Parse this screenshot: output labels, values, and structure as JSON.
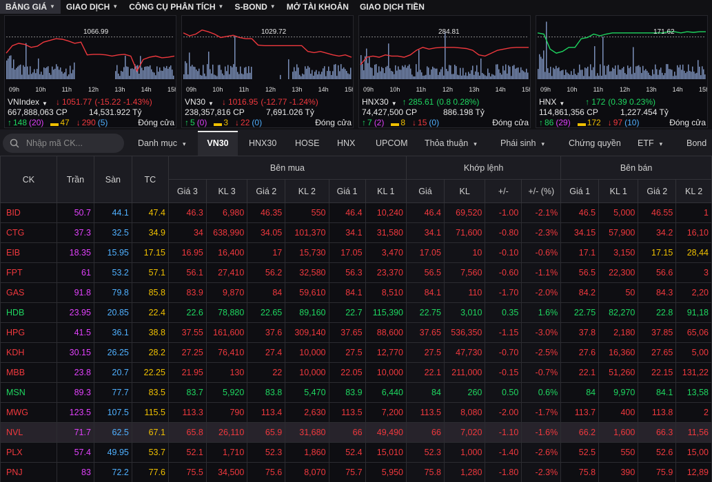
{
  "nav": {
    "items": [
      {
        "label": "BẢNG GIÁ",
        "dropdown": true,
        "active": true
      },
      {
        "label": "GIAO DỊCH",
        "dropdown": true,
        "active": false
      },
      {
        "label": "CÔNG CỤ PHÂN TÍCH",
        "dropdown": true,
        "active": false
      },
      {
        "label": "S-BOND",
        "dropdown": true,
        "active": false
      },
      {
        "label": "MỞ TÀI KHOẢN",
        "dropdown": false,
        "active": false
      },
      {
        "label": "GIAO DỊCH TIỀN",
        "dropdown": false,
        "active": false
      }
    ]
  },
  "indices": [
    {
      "name": "VNIndex",
      "has_dropdown": true,
      "ref": "1066.99",
      "arrow": "down",
      "value": "1051.77",
      "change": "(-15.22  -1.43%)",
      "volume": "667,888,063 CP",
      "value_traded": "14,531.922 Tỷ",
      "up": "148",
      "ceil": "(20)",
      "ref_count": "47",
      "down": "290",
      "floor": "(5)",
      "status": "Đóng cửa",
      "color": "red",
      "times": [
        "09h",
        "10h",
        "11h",
        "12h",
        "13h",
        "14h",
        "15h"
      ]
    },
    {
      "name": "VN30",
      "has_dropdown": true,
      "ref": "1029.72",
      "arrow": "down",
      "value": "1016.95",
      "change": "(-12.77  -1.24%)",
      "volume": "238,357,816 CP",
      "value_traded": "7,691.026 Tỷ",
      "up": "5",
      "ceil": "(0)",
      "ref_count": "3",
      "down": "22",
      "floor": "(0)",
      "status": "Đóng cửa",
      "color": "red",
      "times": [
        "09h",
        "10h",
        "11h",
        "12h",
        "13h",
        "14h",
        "15h"
      ]
    },
    {
      "name": "HNX30",
      "has_dropdown": true,
      "ref": "284.81",
      "arrow": "up",
      "value": "285.61",
      "change": "(0.8  0.28%)",
      "volume": "74,427,500 CP",
      "value_traded": "886.198 Tỷ",
      "up": "7",
      "ceil": "(2)",
      "ref_count": "8",
      "down": "15",
      "floor": "(0)",
      "status": "Đóng cửa",
      "color": "green",
      "times": [
        "09h",
        "10h",
        "11h",
        "12h",
        "13h",
        "14h",
        "15h"
      ]
    },
    {
      "name": "HNX",
      "has_dropdown": true,
      "ref": "171.62",
      "arrow": "up",
      "value": "172",
      "change": "(0.39  0.23%)",
      "volume": "114,861,356 CP",
      "value_traded": "1,227.454 Tỷ",
      "up": "86",
      "ceil": "(29)",
      "ref_count": "172",
      "down": "97",
      "floor": "(10)",
      "status": "Đóng cửa",
      "color": "green",
      "times": [
        "09h",
        "10h",
        "11h",
        "12h",
        "13h",
        "14h",
        "15h"
      ]
    }
  ],
  "search": {
    "placeholder": "Nhập mã CK..."
  },
  "filter_tabs": [
    {
      "label": "Danh mục",
      "dropdown": true,
      "active": false
    },
    {
      "label": "VN30",
      "dropdown": false,
      "active": true
    },
    {
      "label": "HNX30",
      "dropdown": false,
      "active": false
    },
    {
      "label": "HOSE",
      "dropdown": false,
      "active": false
    },
    {
      "label": "HNX",
      "dropdown": false,
      "active": false
    },
    {
      "label": "UPCOM",
      "dropdown": false,
      "active": false
    },
    {
      "label": "Thỏa thuận",
      "dropdown": true,
      "active": false
    },
    {
      "label": "Phái sinh",
      "dropdown": true,
      "active": false
    },
    {
      "label": "Chứng quyền",
      "dropdown": false,
      "active": false
    },
    {
      "label": "ETF",
      "dropdown": true,
      "active": false
    },
    {
      "label": "Bond",
      "dropdown": false,
      "active": false
    }
  ],
  "table": {
    "group_headers": {
      "ck": "CK",
      "ceiling": "Trần",
      "floor": "Sàn",
      "ref": "TC",
      "buy": "Bên mua",
      "match": "Khớp lệnh",
      "sell": "Bên bán"
    },
    "sub_headers": [
      "Giá 3",
      "KL 3",
      "Giá 2",
      "KL 2",
      "Giá 1",
      "KL 1",
      "Giá",
      "KL",
      "+/-",
      "+/- (%)",
      "Giá 1",
      "KL 1",
      "Giá 2",
      "KL 2"
    ],
    "rows": [
      {
        "ck": "BID",
        "color": "red",
        "cells": [
          "50.7",
          "44.1",
          "47.4",
          "46.3",
          "6,980",
          "46.35",
          "550",
          "46.4",
          "10,240",
          "46.4",
          "69,520",
          "-1.00",
          "-2.1%",
          "46.5",
          "5,000",
          "46.55",
          "1"
        ],
        "colors": [
          "p",
          "b",
          "y",
          "r",
          "r",
          "r",
          "r",
          "r",
          "r",
          "r",
          "r",
          "r",
          "r",
          "r",
          "r",
          "r",
          "r"
        ]
      },
      {
        "ck": "CTG",
        "color": "red",
        "cells": [
          "37.3",
          "32.5",
          "34.9",
          "34",
          "638,990",
          "34.05",
          "101,370",
          "34.1",
          "31,580",
          "34.1",
          "71,600",
          "-0.80",
          "-2.3%",
          "34.15",
          "57,900",
          "34.2",
          "16,10"
        ],
        "colors": [
          "p",
          "b",
          "y",
          "r",
          "r",
          "r",
          "r",
          "r",
          "r",
          "r",
          "r",
          "r",
          "r",
          "r",
          "r",
          "r",
          "r"
        ]
      },
      {
        "ck": "EIB",
        "color": "red",
        "cells": [
          "18.35",
          "15.95",
          "17.15",
          "16.95",
          "16,400",
          "17",
          "15,730",
          "17.05",
          "3,470",
          "17.05",
          "10",
          "-0.10",
          "-0.6%",
          "17.1",
          "3,150",
          "17.15",
          "28,44"
        ],
        "colors": [
          "p",
          "b",
          "y",
          "r",
          "r",
          "r",
          "r",
          "r",
          "r",
          "r",
          "r",
          "r",
          "r",
          "r",
          "r",
          "y",
          "y"
        ]
      },
      {
        "ck": "FPT",
        "color": "red",
        "cells": [
          "61",
          "53.2",
          "57.1",
          "56.1",
          "27,410",
          "56.2",
          "32,580",
          "56.3",
          "23,370",
          "56.5",
          "7,560",
          "-0.60",
          "-1.1%",
          "56.5",
          "22,300",
          "56.6",
          "3"
        ],
        "colors": [
          "p",
          "b",
          "y",
          "r",
          "r",
          "r",
          "r",
          "r",
          "r",
          "r",
          "r",
          "r",
          "r",
          "r",
          "r",
          "r",
          "r"
        ]
      },
      {
        "ck": "GAS",
        "color": "red",
        "cells": [
          "91.8",
          "79.8",
          "85.8",
          "83.9",
          "9,870",
          "84",
          "59,610",
          "84.1",
          "8,510",
          "84.1",
          "110",
          "-1.70",
          "-2.0%",
          "84.2",
          "50",
          "84.3",
          "2,20"
        ],
        "colors": [
          "p",
          "b",
          "y",
          "r",
          "r",
          "r",
          "r",
          "r",
          "r",
          "r",
          "r",
          "r",
          "r",
          "r",
          "r",
          "r",
          "r"
        ]
      },
      {
        "ck": "HDB",
        "color": "green",
        "cells": [
          "23.95",
          "20.85",
          "22.4",
          "22.6",
          "78,880",
          "22.65",
          "89,160",
          "22.7",
          "115,390",
          "22.75",
          "3,010",
          "0.35",
          "1.6%",
          "22.75",
          "82,270",
          "22.8",
          "91,18"
        ],
        "colors": [
          "p",
          "b",
          "y",
          "g",
          "g",
          "g",
          "g",
          "g",
          "g",
          "g",
          "g",
          "g",
          "g",
          "g",
          "g",
          "g",
          "g"
        ]
      },
      {
        "ck": "HPG",
        "color": "red",
        "cells": [
          "41.5",
          "36.1",
          "38.8",
          "37.55",
          "161,600",
          "37.6",
          "309,140",
          "37.65",
          "88,600",
          "37.65",
          "536,350",
          "-1.15",
          "-3.0%",
          "37.8",
          "2,180",
          "37.85",
          "65,06"
        ],
        "colors": [
          "p",
          "b",
          "y",
          "r",
          "r",
          "r",
          "r",
          "r",
          "r",
          "r",
          "r",
          "r",
          "r",
          "r",
          "r",
          "r",
          "r"
        ]
      },
      {
        "ck": "KDH",
        "color": "red",
        "cells": [
          "30.15",
          "26.25",
          "28.2",
          "27.25",
          "76,410",
          "27.4",
          "10,000",
          "27.5",
          "12,770",
          "27.5",
          "47,730",
          "-0.70",
          "-2.5%",
          "27.6",
          "16,360",
          "27.65",
          "5,00"
        ],
        "colors": [
          "p",
          "b",
          "y",
          "r",
          "r",
          "r",
          "r",
          "r",
          "r",
          "r",
          "r",
          "r",
          "r",
          "r",
          "r",
          "r",
          "r"
        ]
      },
      {
        "ck": "MBB",
        "color": "red",
        "cells": [
          "23.8",
          "20.7",
          "22.25",
          "21.95",
          "130",
          "22",
          "10,000",
          "22.05",
          "10,000",
          "22.1",
          "211,000",
          "-0.15",
          "-0.7%",
          "22.1",
          "51,260",
          "22.15",
          "131,22"
        ],
        "colors": [
          "p",
          "b",
          "y",
          "r",
          "r",
          "r",
          "r",
          "r",
          "r",
          "r",
          "r",
          "r",
          "r",
          "r",
          "r",
          "r",
          "r"
        ]
      },
      {
        "ck": "MSN",
        "color": "green",
        "cells": [
          "89.3",
          "77.7",
          "83.5",
          "83.7",
          "5,920",
          "83.8",
          "5,470",
          "83.9",
          "6,440",
          "84",
          "260",
          "0.50",
          "0.6%",
          "84",
          "9,970",
          "84.1",
          "13,58"
        ],
        "colors": [
          "p",
          "b",
          "y",
          "g",
          "g",
          "g",
          "g",
          "g",
          "g",
          "g",
          "g",
          "g",
          "g",
          "g",
          "g",
          "g",
          "g"
        ]
      },
      {
        "ck": "MWG",
        "color": "red",
        "cells": [
          "123.5",
          "107.5",
          "115.5",
          "113.3",
          "790",
          "113.4",
          "2,630",
          "113.5",
          "7,200",
          "113.5",
          "8,080",
          "-2.00",
          "-1.7%",
          "113.7",
          "400",
          "113.8",
          "2"
        ],
        "colors": [
          "p",
          "b",
          "y",
          "r",
          "r",
          "r",
          "r",
          "r",
          "r",
          "r",
          "r",
          "r",
          "r",
          "r",
          "r",
          "r",
          "r"
        ]
      },
      {
        "ck": "NVL",
        "color": "red",
        "highlight": true,
        "cells": [
          "71.7",
          "62.5",
          "67.1",
          "65.8",
          "26,110",
          "65.9",
          "31,680",
          "66",
          "49,490",
          "66",
          "7,020",
          "-1.10",
          "-1.6%",
          "66.2",
          "1,600",
          "66.3",
          "11,56"
        ],
        "colors": [
          "p",
          "b",
          "y",
          "r",
          "r",
          "r",
          "r",
          "r",
          "r",
          "r",
          "r",
          "r",
          "r",
          "r",
          "r",
          "r",
          "r"
        ]
      },
      {
        "ck": "PLX",
        "color": "red",
        "cells": [
          "57.4",
          "49.95",
          "53.7",
          "52.1",
          "1,710",
          "52.3",
          "1,860",
          "52.4",
          "15,010",
          "52.3",
          "1,000",
          "-1.40",
          "-2.6%",
          "52.5",
          "550",
          "52.6",
          "15,00"
        ],
        "colors": [
          "p",
          "b",
          "y",
          "r",
          "r",
          "r",
          "r",
          "r",
          "r",
          "r",
          "r",
          "r",
          "r",
          "r",
          "r",
          "r",
          "r"
        ]
      },
      {
        "ck": "PNJ",
        "color": "red",
        "cells": [
          "83",
          "72.2",
          "77.6",
          "75.5",
          "34,500",
          "75.6",
          "8,070",
          "75.7",
          "5,950",
          "75.8",
          "1,280",
          "-1.80",
          "-2.3%",
          "75.8",
          "390",
          "75.9",
          "12,89"
        ],
        "colors": [
          "p",
          "b",
          "y",
          "r",
          "r",
          "r",
          "r",
          "r",
          "r",
          "r",
          "r",
          "r",
          "r",
          "r",
          "r",
          "r",
          "r"
        ]
      }
    ]
  },
  "colors": {
    "red": "#f0383d",
    "green": "#1ed760",
    "purple": "#e040fb",
    "blue": "#4fb0ff",
    "yellow": "#f0c000"
  }
}
